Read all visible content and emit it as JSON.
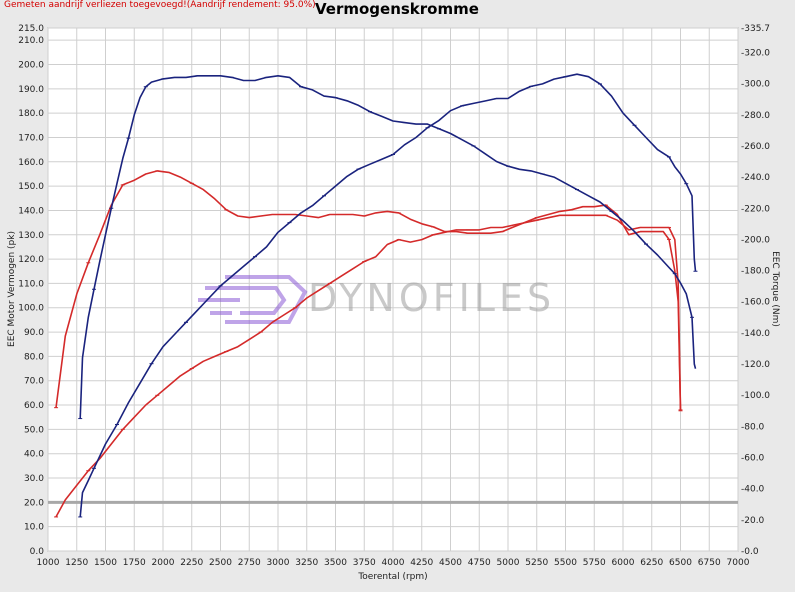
{
  "header": {
    "warning": "Gemeten aandrijf verliezen toegevoegd!(Aandrijf rendement: 95.0%)",
    "title": "Vermogenskromme"
  },
  "watermark": {
    "text": "DYNOFILES"
  },
  "colors": {
    "stock": "#d42a2a",
    "tuned": "#1a237e",
    "grid": "#cfcfcf",
    "background": "#ffffff"
  },
  "chart_data": {
    "type": "line",
    "title": "Vermogenskromme",
    "xlabel": "Toerental (rpm)",
    "ylabel_left": "EEC Motor Vermogen (pk)",
    "ylabel_right": "EEC Torque (Nm)",
    "xlim": [
      1000,
      7000
    ],
    "ylim_left": [
      0,
      215
    ],
    "ylim_right": [
      0,
      335.7
    ],
    "grid": true,
    "x_ticks": [
      1000,
      1250,
      1500,
      1750,
      2000,
      2250,
      2500,
      2750,
      3000,
      3250,
      3500,
      3750,
      4000,
      4250,
      4500,
      4750,
      5000,
      5250,
      5500,
      5750,
      6000,
      6250,
      6500,
      6750,
      7000
    ],
    "y_left_ticks": [
      0,
      10,
      20,
      30,
      40,
      50,
      60,
      70,
      80,
      90,
      100,
      110,
      120,
      130,
      140,
      150,
      160,
      170,
      180,
      190,
      200,
      210,
      215
    ],
    "y_left_tick_labels": [
      "0.0",
      "10.0",
      "20.0",
      "30.0",
      "40.0",
      "50.0",
      "60.0",
      "70.0",
      "80.0",
      "90.0",
      "100.0",
      "110.0",
      "120.0",
      "130.0",
      "140.0",
      "150.0",
      "160.0",
      "170.0",
      "180.0",
      "190.0",
      "200.0",
      "210.0",
      "215.0"
    ],
    "y_right_ticks": [
      0,
      20,
      40,
      60,
      80,
      100,
      120,
      140,
      160,
      180,
      200,
      220,
      240,
      260,
      280,
      300,
      320,
      335.7
    ],
    "y_right_tick_labels": [
      "0.0",
      "20.0",
      "40.0",
      "60.0",
      "80.0",
      "100.0",
      "120.0",
      "140.0",
      "160.0",
      "180.0",
      "200.0",
      "220.0",
      "240.0",
      "260.0",
      "280.0",
      "300.0",
      "320.0",
      "335.7"
    ],
    "series": [
      {
        "axis": "right",
        "color": "#d42a2a",
        "width": 1.6,
        "x": [
          1070,
          1150,
          1250,
          1350,
          1450,
          1550,
          1650,
          1750,
          1850,
          1950,
          2050,
          2150,
          2250,
          2350,
          2450,
          2550,
          2650,
          2750,
          2850,
          2950,
          3050,
          3150,
          3250,
          3350,
          3450,
          3550,
          3650,
          3750,
          3850,
          3950,
          4050,
          4150,
          4250,
          4350,
          4450,
          4550,
          4650,
          4750,
          4850,
          4950,
          5050,
          5150,
          5250,
          5350,
          5450,
          5550,
          5650,
          5750,
          5850,
          5950,
          6050,
          6150,
          6250,
          6350,
          6400,
          6450,
          6480,
          6500
        ],
        "y": [
          92,
          138,
          165,
          185,
          203,
          222,
          235,
          238,
          242,
          244,
          243,
          240,
          236,
          232,
          226,
          219,
          215,
          214,
          215,
          216,
          216,
          216,
          215,
          214,
          216,
          216,
          216,
          215,
          217,
          218,
          217,
          213,
          210,
          208,
          205,
          205,
          204,
          204,
          204,
          205,
          208,
          211,
          214,
          216,
          218,
          219,
          221,
          221,
          222,
          216,
          203,
          205,
          205,
          205,
          200,
          180,
          160,
          90
        ]
      },
      {
        "axis": "left",
        "color": "#d42a2a",
        "width": 1.6,
        "x": [
          1070,
          1150,
          1250,
          1350,
          1450,
          1550,
          1650,
          1750,
          1850,
          1950,
          2050,
          2150,
          2250,
          2350,
          2450,
          2550,
          2650,
          2750,
          2850,
          2950,
          3050,
          3150,
          3250,
          3350,
          3450,
          3550,
          3650,
          3750,
          3850,
          3950,
          4050,
          4150,
          4250,
          4350,
          4450,
          4550,
          4650,
          4750,
          4850,
          4950,
          5050,
          5150,
          5250,
          5350,
          5450,
          5550,
          5650,
          5750,
          5850,
          5950,
          6050,
          6150,
          6250,
          6350,
          6400,
          6450,
          6480,
          6500
        ],
        "y": [
          14,
          21,
          27,
          33,
          38,
          44,
          50,
          55,
          60,
          64,
          68,
          72,
          75,
          78,
          80,
          82,
          84,
          87,
          90,
          94,
          97,
          100,
          104,
          107,
          110,
          113,
          116,
          119,
          121,
          126,
          128,
          127,
          128,
          130,
          131,
          132,
          132,
          132,
          133,
          133,
          134,
          135,
          136,
          137,
          138,
          138,
          138,
          138,
          138,
          136,
          132,
          133,
          133,
          133,
          133,
          128,
          110,
          58
        ]
      },
      {
        "axis": "right",
        "color": "#1a237e",
        "width": 1.6,
        "x": [
          1280,
          1300,
          1350,
          1400,
          1450,
          1500,
          1550,
          1600,
          1650,
          1700,
          1750,
          1800,
          1850,
          1900,
          1950,
          2000,
          2100,
          2200,
          2300,
          2400,
          2500,
          2600,
          2700,
          2800,
          2900,
          3000,
          3100,
          3200,
          3300,
          3400,
          3500,
          3600,
          3700,
          3800,
          3900,
          4000,
          4100,
          4200,
          4300,
          4400,
          4500,
          4600,
          4700,
          4800,
          4900,
          5000,
          5100,
          5200,
          5300,
          5400,
          5500,
          5600,
          5700,
          5800,
          5900,
          6000,
          6100,
          6200,
          6300,
          6400,
          6450,
          6500,
          6550,
          6600,
          6620,
          6630
        ],
        "y": [
          85,
          124,
          150,
          168,
          186,
          203,
          220,
          236,
          252,
          265,
          280,
          291,
          298,
          301,
          302,
          303,
          304,
          304,
          305,
          305,
          305,
          304,
          302,
          302,
          304,
          305,
          304,
          298,
          296,
          292,
          291,
          289,
          286,
          282,
          279,
          276,
          275,
          274,
          274,
          271,
          268,
          264,
          260,
          255,
          250,
          247,
          245,
          244,
          242,
          240,
          236,
          232,
          228,
          224,
          218,
          212,
          205,
          197,
          190,
          182,
          178,
          172,
          165,
          150,
          120,
          117
        ]
      },
      {
        "axis": "left",
        "color": "#1a237e",
        "width": 1.6,
        "x": [
          1280,
          1300,
          1350,
          1400,
          1450,
          1500,
          1600,
          1700,
          1800,
          1900,
          2000,
          2100,
          2200,
          2300,
          2400,
          2500,
          2600,
          2700,
          2800,
          2900,
          3000,
          3100,
          3200,
          3300,
          3400,
          3500,
          3600,
          3700,
          3800,
          3900,
          4000,
          4100,
          4200,
          4300,
          4400,
          4500,
          4600,
          4700,
          4800,
          4900,
          5000,
          5100,
          5200,
          5300,
          5400,
          5500,
          5600,
          5700,
          5800,
          5900,
          6000,
          6100,
          6200,
          6300,
          6400,
          6450,
          6500,
          6550,
          6600,
          6620,
          6630
        ],
        "y": [
          14,
          24,
          29,
          34,
          39,
          44,
          52,
          61,
          69,
          77,
          84,
          89,
          94,
          99,
          104,
          109,
          113,
          117,
          121,
          125,
          131,
          135,
          139,
          142,
          146,
          150,
          154,
          157,
          159,
          161,
          163,
          167,
          170,
          174,
          177,
          181,
          183,
          184,
          185,
          186,
          186,
          189,
          191,
          192,
          194,
          195,
          196,
          195,
          192,
          187,
          180,
          175,
          170,
          165,
          162,
          158,
          155,
          151,
          146,
          120,
          115
        ]
      }
    ]
  }
}
